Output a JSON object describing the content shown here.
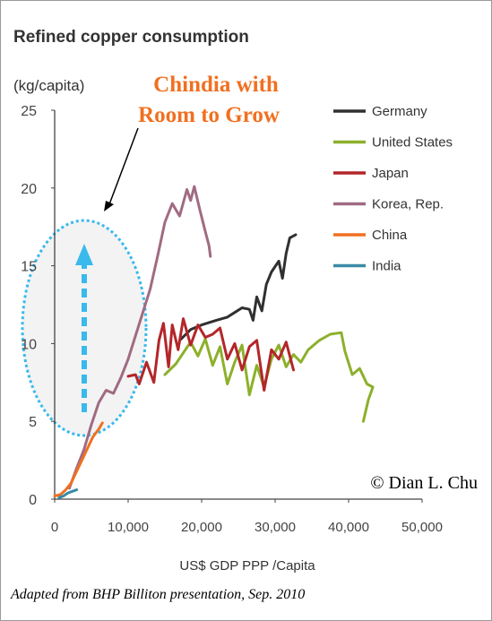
{
  "title": "Refined copper consumption",
  "annotation": {
    "line1": "Chindia with",
    "line2": "Room to Grow",
    "color": "#f07020"
  },
  "watermark": "© Dian L. Chu",
  "source": "Adapted from BHP Billiton presentation, Sep. 2010",
  "chart_data": {
    "type": "line",
    "title": "Refined copper consumption",
    "ylabel": "(kg/capita)",
    "xlabel": "US$ GDP PPP /Capita",
    "xlim": [
      0,
      50000
    ],
    "ylim": [
      0,
      25
    ],
    "x_ticks": [
      0,
      10000,
      20000,
      30000,
      40000,
      50000
    ],
    "x_tick_labels": [
      "0",
      "10,000",
      "20,000",
      "30,000",
      "40,000",
      "50,000"
    ],
    "y_ticks": [
      0,
      5,
      10,
      15,
      20,
      25
    ],
    "y_tick_labels": [
      "0",
      "5",
      "10",
      "15",
      "20",
      "25"
    ],
    "legend_position": "right",
    "series": [
      {
        "name": "Germany",
        "color": "#303030",
        "points": [
          [
            17000,
            10.2
          ],
          [
            18500,
            10.9
          ],
          [
            20000,
            11.2
          ],
          [
            22000,
            11.5
          ],
          [
            23500,
            11.7
          ],
          [
            24500,
            12.0
          ],
          [
            25500,
            12.3
          ],
          [
            26500,
            12.2
          ],
          [
            27000,
            11.5
          ],
          [
            27500,
            13.0
          ],
          [
            28200,
            12.1
          ],
          [
            28800,
            13.8
          ],
          [
            29500,
            14.6
          ],
          [
            30500,
            15.3
          ],
          [
            31000,
            14.2
          ],
          [
            31500,
            15.8
          ],
          [
            32000,
            16.8
          ],
          [
            32800,
            17.0
          ]
        ]
      },
      {
        "name": "United States",
        "color": "#8cb02c",
        "points": [
          [
            15000,
            8.0
          ],
          [
            16500,
            8.7
          ],
          [
            17500,
            9.4
          ],
          [
            18500,
            10.1
          ],
          [
            19500,
            9.2
          ],
          [
            20500,
            10.3
          ],
          [
            21500,
            8.6
          ],
          [
            22500,
            9.8
          ],
          [
            23500,
            7.4
          ],
          [
            24500,
            8.8
          ],
          [
            25500,
            9.9
          ],
          [
            26500,
            6.7
          ],
          [
            27500,
            8.6
          ],
          [
            28500,
            7.2
          ],
          [
            29500,
            9.0
          ],
          [
            30500,
            9.9
          ],
          [
            31500,
            8.5
          ],
          [
            32500,
            9.3
          ],
          [
            33500,
            8.8
          ],
          [
            34500,
            9.6
          ],
          [
            36000,
            10.2
          ],
          [
            37500,
            10.6
          ],
          [
            39000,
            10.7
          ],
          [
            39500,
            9.5
          ],
          [
            40500,
            8.0
          ],
          [
            41500,
            8.4
          ],
          [
            42500,
            7.4
          ],
          [
            43300,
            7.2
          ],
          [
            42700,
            6.4
          ],
          [
            42000,
            5.0
          ]
        ]
      },
      {
        "name": "Japan",
        "color": "#b3262a",
        "points": [
          [
            10000,
            7.9
          ],
          [
            11000,
            8.0
          ],
          [
            11500,
            7.4
          ],
          [
            12500,
            8.8
          ],
          [
            13500,
            7.5
          ],
          [
            14200,
            10.2
          ],
          [
            14800,
            11.3
          ],
          [
            15500,
            8.5
          ],
          [
            16000,
            11.2
          ],
          [
            16800,
            9.6
          ],
          [
            17500,
            11.6
          ],
          [
            18500,
            9.9
          ],
          [
            19500,
            11.2
          ],
          [
            20500,
            10.4
          ],
          [
            21500,
            10.6
          ],
          [
            22500,
            11.0
          ],
          [
            23500,
            9.0
          ],
          [
            24500,
            10.0
          ],
          [
            25500,
            8.3
          ],
          [
            26500,
            9.8
          ],
          [
            27500,
            10.2
          ],
          [
            28500,
            7.0
          ],
          [
            29500,
            9.6
          ],
          [
            30500,
            9.0
          ],
          [
            31500,
            10.1
          ],
          [
            32500,
            8.3
          ]
        ]
      },
      {
        "name": "Korea, Rep.",
        "color": "#a06b82",
        "points": [
          [
            2000,
            0.7
          ],
          [
            3000,
            2.0
          ],
          [
            4000,
            3.2
          ],
          [
            5000,
            4.8
          ],
          [
            6000,
            6.2
          ],
          [
            7000,
            7.0
          ],
          [
            8000,
            6.8
          ],
          [
            9000,
            7.8
          ],
          [
            10000,
            9.0
          ],
          [
            11000,
            10.5
          ],
          [
            12000,
            12.0
          ],
          [
            13000,
            13.5
          ],
          [
            14000,
            15.6
          ],
          [
            15000,
            17.8
          ],
          [
            16000,
            19.0
          ],
          [
            17000,
            18.2
          ],
          [
            18000,
            19.9
          ],
          [
            18500,
            19.2
          ],
          [
            19000,
            20.1
          ],
          [
            19800,
            18.5
          ],
          [
            20500,
            17.2
          ],
          [
            21000,
            16.3
          ],
          [
            21200,
            15.6
          ]
        ]
      },
      {
        "name": "China",
        "color": "#f07020",
        "points": [
          [
            0,
            0.2
          ],
          [
            800,
            0.3
          ],
          [
            1500,
            0.6
          ],
          [
            2200,
            1.0
          ],
          [
            3000,
            1.8
          ],
          [
            3800,
            2.6
          ],
          [
            4500,
            3.3
          ],
          [
            5200,
            4.0
          ],
          [
            6000,
            4.5
          ],
          [
            6500,
            4.9
          ]
        ]
      },
      {
        "name": "India",
        "color": "#3a8aa6",
        "points": [
          [
            600,
            0.1
          ],
          [
            1200,
            0.2
          ],
          [
            1800,
            0.4
          ],
          [
            2400,
            0.5
          ],
          [
            3000,
            0.6
          ]
        ]
      }
    ]
  }
}
